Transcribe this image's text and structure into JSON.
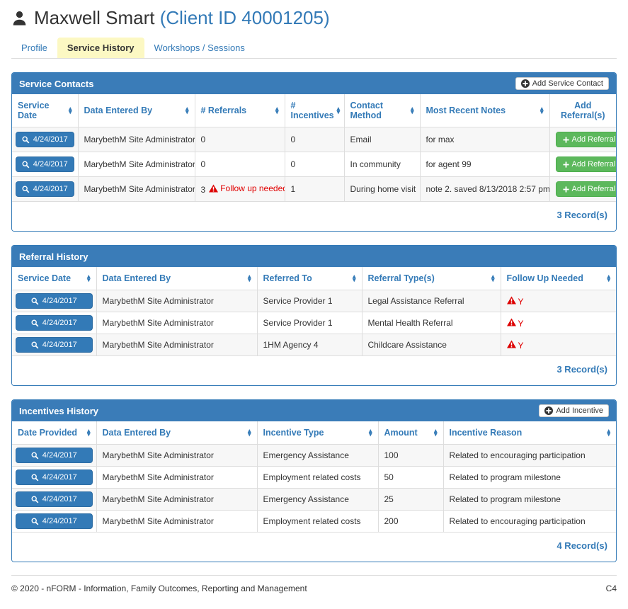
{
  "colors": {
    "accent": "#337ab7",
    "panel_heading": "#3a7cb8",
    "success_button": "#5cb85c",
    "danger": "#e00000",
    "active_tab_bg": "#fcf8c3"
  },
  "header": {
    "client_name": "Maxwell Smart",
    "client_id": "(Client ID 40001205)"
  },
  "tabs": [
    {
      "label": "Profile",
      "active": false
    },
    {
      "label": "Service History",
      "active": true
    },
    {
      "label": "Workshops / Sessions",
      "active": false
    }
  ],
  "service_contacts": {
    "title": "Service Contacts",
    "add_button": "Add Service Contact",
    "row_button": "Add Referral",
    "columns": [
      {
        "label": "Service Date",
        "sortable": true
      },
      {
        "label": "Data Entered By",
        "sortable": true
      },
      {
        "label": "# Referrals",
        "sortable": true
      },
      {
        "label": "# Incentives",
        "sortable": true
      },
      {
        "label": "Contact Method",
        "sortable": true
      },
      {
        "label": "Most Recent Notes",
        "sortable": true
      },
      {
        "label": "Add Referral(s)",
        "sortable": false
      }
    ],
    "rows": [
      {
        "service_date": "4/24/2017",
        "data_entered_by": "MarybethM Site Administrator",
        "referrals": "0",
        "follow_up_needed": false,
        "follow_up_text": "",
        "incentives": "0",
        "contact_method": "Email",
        "notes": "for max"
      },
      {
        "service_date": "4/24/2017",
        "data_entered_by": "MarybethM Site Administrator",
        "referrals": "0",
        "follow_up_needed": false,
        "follow_up_text": "",
        "incentives": "0",
        "contact_method": "In community",
        "notes": "for agent 99"
      },
      {
        "service_date": "4/24/2017",
        "data_entered_by": "MarybethM Site Administrator",
        "referrals": "3",
        "follow_up_needed": true,
        "follow_up_text": "Follow up needed",
        "incentives": "1",
        "contact_method": "During home visit",
        "notes": "note 2. saved 8/13/2018 2:57 pm."
      }
    ],
    "record_count": "3 Record(s)"
  },
  "referral_history": {
    "title": "Referral History",
    "columns": [
      {
        "label": "Service Date",
        "sortable": true
      },
      {
        "label": "Data Entered By",
        "sortable": true
      },
      {
        "label": "Referred To",
        "sortable": true
      },
      {
        "label": "Referral Type(s)",
        "sortable": true
      },
      {
        "label": "Follow Up Needed",
        "sortable": true
      }
    ],
    "rows": [
      {
        "service_date": "4/24/2017",
        "data_entered_by": "MarybethM Site Administrator",
        "referred_to": "Service Provider 1",
        "referral_type": "Legal Assistance Referral",
        "follow_up": "Y"
      },
      {
        "service_date": "4/24/2017",
        "data_entered_by": "MarybethM Site Administrator",
        "referred_to": "Service Provider 1",
        "referral_type": "Mental Health Referral",
        "follow_up": "Y"
      },
      {
        "service_date": "4/24/2017",
        "data_entered_by": "MarybethM Site Administrator",
        "referred_to": "1HM Agency 4",
        "referral_type": "Childcare Assistance",
        "follow_up": "Y"
      }
    ],
    "record_count": "3 Record(s)"
  },
  "incentives_history": {
    "title": "Incentives History",
    "add_button": "Add Incentive",
    "columns": [
      {
        "label": "Date Provided",
        "sortable": true
      },
      {
        "label": "Data Entered By",
        "sortable": true
      },
      {
        "label": "Incentive Type",
        "sortable": true
      },
      {
        "label": "Amount",
        "sortable": true
      },
      {
        "label": "Incentive Reason",
        "sortable": true
      }
    ],
    "rows": [
      {
        "date_provided": "4/24/2017",
        "data_entered_by": "MarybethM Site Administrator",
        "incentive_type": "Emergency Assistance",
        "amount": "100",
        "reason": "Related to encouraging participation"
      },
      {
        "date_provided": "4/24/2017",
        "data_entered_by": "MarybethM Site Administrator",
        "incentive_type": "Employment related costs",
        "amount": "50",
        "reason": "Related to program milestone"
      },
      {
        "date_provided": "4/24/2017",
        "data_entered_by": "MarybethM Site Administrator",
        "incentive_type": "Emergency Assistance",
        "amount": "25",
        "reason": "Related to program milestone"
      },
      {
        "date_provided": "4/24/2017",
        "data_entered_by": "MarybethM Site Administrator",
        "incentive_type": "Employment related costs",
        "amount": "200",
        "reason": "Related to encouraging participation"
      }
    ],
    "record_count": "4 Record(s)"
  },
  "footer": {
    "copyright": "© 2020 - nFORM - Information, Family Outcomes, Reporting and Management",
    "page_code": "C4"
  }
}
